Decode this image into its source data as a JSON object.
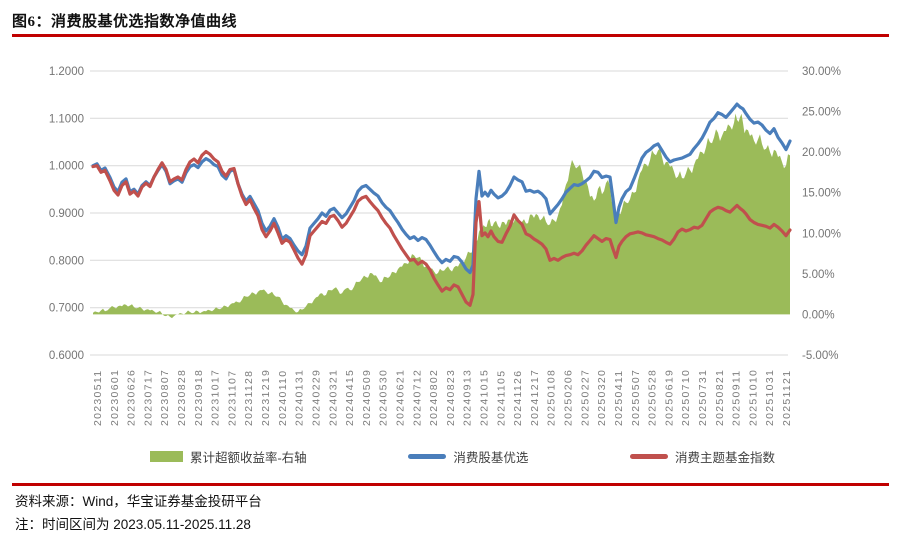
{
  "figure": {
    "title": "图6：消费股基优选指数净值曲线",
    "source_line": "资料来源：Wind，华宝证券基金投研平台",
    "note_line": "注：时间区间为 2023.05.11-2025.11.28",
    "accent_rule_color": "#c00000"
  },
  "chart_data": {
    "type": "line",
    "title": "消费股基优选指数净值曲线",
    "grid": "horizontal",
    "legend_position": "bottom",
    "left_axis": {
      "min": 0.6,
      "max": 1.2,
      "ticks": [
        "1.2000",
        "1.1000",
        "1.0000",
        "0.9000",
        "0.8000",
        "0.7000",
        "0.6000"
      ]
    },
    "right_axis": {
      "min": -5,
      "max": 30,
      "ticks": [
        "30.00%",
        "25.00%",
        "20.00%",
        "15.00%",
        "10.00%",
        "5.00%",
        "0.00%",
        "-5.00%"
      ]
    },
    "x_tick_labels": [
      "20230511",
      "20230601",
      "20230626",
      "20230717",
      "20230807",
      "20230828",
      "20230918",
      "20231017",
      "20231107",
      "20231128",
      "20231219",
      "20240110",
      "20240131",
      "20240229",
      "20240321",
      "20240415",
      "20240509",
      "20240530",
      "20240621",
      "20240712",
      "20240802",
      "20240823",
      "20240913",
      "20241015",
      "20241105",
      "20241126",
      "20241217",
      "20250108",
      "20250206",
      "20250227",
      "20250320",
      "20250411",
      "20250507",
      "20250528",
      "20250619",
      "20250710",
      "20250731",
      "20250821",
      "20250911",
      "20251010",
      "20251031",
      "20251121"
    ],
    "series_meta": [
      {
        "name": "累计超额收益率-右轴",
        "type": "area",
        "axis": "right",
        "color": "#9bbb59"
      },
      {
        "name": "消费股基优选",
        "type": "line",
        "axis": "left",
        "color": "#4a7ebb"
      },
      {
        "name": "消费主题基金指数",
        "type": "line",
        "axis": "left",
        "color": "#c0504d"
      }
    ],
    "points_columns": [
      "x_px",
      "消费股基优选",
      "消费主题基金指数",
      "累计超额收益率_pct"
    ],
    "points": [
      [
        93,
        1.0,
        0.998,
        0.2
      ],
      [
        97,
        1.004,
        1.0,
        0.3
      ],
      [
        101,
        0.99,
        0.986,
        0.5
      ],
      [
        105,
        0.995,
        0.99,
        0.4
      ],
      [
        110,
        0.975,
        0.968,
        0.8
      ],
      [
        114,
        0.955,
        0.948,
        0.9
      ],
      [
        118,
        0.945,
        0.938,
        1.0
      ],
      [
        122,
        0.965,
        0.958,
        1.0
      ],
      [
        126,
        0.972,
        0.966,
        1.2
      ],
      [
        130,
        0.945,
        0.94,
        1.1
      ],
      [
        134,
        0.95,
        0.946,
        0.9
      ],
      [
        138,
        0.94,
        0.936,
        0.8
      ],
      [
        142,
        0.958,
        0.955,
        0.7
      ],
      [
        146,
        0.966,
        0.963,
        0.6
      ],
      [
        150,
        0.958,
        0.956,
        0.5
      ],
      [
        154,
        0.976,
        0.976,
        0.4
      ],
      [
        158,
        0.99,
        0.992,
        0.3
      ],
      [
        162,
        1.002,
        1.006,
        0.1
      ],
      [
        166,
        0.988,
        0.992,
        -0.2
      ],
      [
        170,
        0.962,
        0.966,
        -0.3
      ],
      [
        174,
        0.968,
        0.972,
        -0.2
      ],
      [
        178,
        0.972,
        0.976,
        0.0
      ],
      [
        182,
        0.965,
        0.97,
        0.1
      ],
      [
        186,
        0.985,
        0.992,
        0.2
      ],
      [
        190,
        0.998,
        1.008,
        0.3
      ],
      [
        194,
        1.002,
        1.014,
        0.2
      ],
      [
        198,
        0.996,
        1.006,
        0.4
      ],
      [
        202,
        1.008,
        1.022,
        0.3
      ],
      [
        206,
        1.015,
        1.03,
        0.4
      ],
      [
        210,
        1.01,
        1.024,
        0.5
      ],
      [
        214,
        1.002,
        1.014,
        0.6
      ],
      [
        218,
        0.998,
        1.008,
        0.7
      ],
      [
        222,
        0.98,
        0.988,
        0.8
      ],
      [
        226,
        0.972,
        0.978,
        1.0
      ],
      [
        230,
        0.988,
        0.992,
        1.2
      ],
      [
        234,
        0.992,
        0.994,
        1.4
      ],
      [
        238,
        0.962,
        0.962,
        1.5
      ],
      [
        242,
        0.94,
        0.936,
        1.8
      ],
      [
        246,
        0.925,
        0.918,
        2.2
      ],
      [
        250,
        0.935,
        0.928,
        2.4
      ],
      [
        254,
        0.92,
        0.91,
        2.6
      ],
      [
        258,
        0.905,
        0.894,
        2.8
      ],
      [
        262,
        0.878,
        0.865,
        3.0
      ],
      [
        266,
        0.862,
        0.85,
        2.8
      ],
      [
        270,
        0.872,
        0.862,
        2.6
      ],
      [
        274,
        0.888,
        0.878,
        2.4
      ],
      [
        278,
        0.87,
        0.858,
        2.2
      ],
      [
        282,
        0.845,
        0.836,
        1.6
      ],
      [
        286,
        0.852,
        0.844,
        1.2
      ],
      [
        290,
        0.846,
        0.838,
        0.8
      ],
      [
        294,
        0.832,
        0.822,
        0.5
      ],
      [
        298,
        0.82,
        0.805,
        0.3
      ],
      [
        302,
        0.812,
        0.792,
        0.6
      ],
      [
        306,
        0.83,
        0.812,
        1.0
      ],
      [
        310,
        0.868,
        0.852,
        1.4
      ],
      [
        314,
        0.878,
        0.862,
        1.8
      ],
      [
        318,
        0.888,
        0.872,
        2.2
      ],
      [
        322,
        0.9,
        0.882,
        2.6
      ],
      [
        326,
        0.893,
        0.878,
        2.4
      ],
      [
        330,
        0.906,
        0.892,
        3.0
      ],
      [
        334,
        0.91,
        0.895,
        3.2
      ],
      [
        338,
        0.9,
        0.884,
        3.0
      ],
      [
        342,
        0.89,
        0.87,
        2.6
      ],
      [
        346,
        0.898,
        0.878,
        3.2
      ],
      [
        350,
        0.912,
        0.892,
        3.0
      ],
      [
        354,
        0.926,
        0.906,
        3.4
      ],
      [
        358,
        0.946,
        0.925,
        4.0
      ],
      [
        362,
        0.955,
        0.932,
        4.4
      ],
      [
        366,
        0.958,
        0.935,
        4.6
      ],
      [
        370,
        0.95,
        0.924,
        5.1
      ],
      [
        374,
        0.942,
        0.914,
        4.8
      ],
      [
        378,
        0.936,
        0.905,
        4.4
      ],
      [
        382,
        0.922,
        0.89,
        4.0
      ],
      [
        386,
        0.912,
        0.878,
        4.6
      ],
      [
        390,
        0.905,
        0.868,
        4.7
      ],
      [
        394,
        0.892,
        0.852,
        5.2
      ],
      [
        398,
        0.88,
        0.838,
        5.6
      ],
      [
        402,
        0.866,
        0.824,
        5.9
      ],
      [
        406,
        0.855,
        0.812,
        6.3
      ],
      [
        410,
        0.846,
        0.8,
        6.7
      ],
      [
        414,
        0.85,
        0.802,
        7.3
      ],
      [
        418,
        0.842,
        0.792,
        7.0
      ],
      [
        422,
        0.848,
        0.798,
        6.5
      ],
      [
        426,
        0.844,
        0.792,
        5.9
      ],
      [
        430,
        0.832,
        0.78,
        5.6
      ],
      [
        434,
        0.818,
        0.762,
        5.3
      ],
      [
        438,
        0.805,
        0.748,
        5.1
      ],
      [
        442,
        0.795,
        0.735,
        5.4
      ],
      [
        446,
        0.802,
        0.742,
        5.7
      ],
      [
        450,
        0.798,
        0.738,
        5.5
      ],
      [
        454,
        0.808,
        0.748,
        5.8
      ],
      [
        458,
        0.806,
        0.744,
        5.9
      ],
      [
        462,
        0.796,
        0.728,
        6.4
      ],
      [
        466,
        0.782,
        0.712,
        7.0
      ],
      [
        470,
        0.774,
        0.705,
        7.6
      ],
      [
        473,
        0.79,
        0.728,
        8.0
      ],
      [
        476,
        0.93,
        0.88,
        9.0
      ],
      [
        479,
        0.988,
        0.924,
        10.2
      ],
      [
        482,
        0.936,
        0.852,
        10.6
      ],
      [
        485,
        0.944,
        0.858,
        10.8
      ],
      [
        488,
        0.936,
        0.85,
        11.5
      ],
      [
        491,
        0.948,
        0.862,
        10.9
      ],
      [
        494,
        0.94,
        0.85,
        11.3
      ],
      [
        498,
        0.932,
        0.84,
        10.9
      ],
      [
        502,
        0.936,
        0.838,
        11.4
      ],
      [
        506,
        0.944,
        0.856,
        11.0
      ],
      [
        510,
        0.958,
        0.872,
        11.7
      ],
      [
        514,
        0.976,
        0.896,
        11.4
      ],
      [
        518,
        0.97,
        0.884,
        11.8
      ],
      [
        522,
        0.966,
        0.876,
        11.4
      ],
      [
        526,
        0.946,
        0.856,
        11.2
      ],
      [
        530,
        0.948,
        0.852,
        12.3
      ],
      [
        534,
        0.944,
        0.845,
        11.9
      ],
      [
        538,
        0.946,
        0.84,
        12.2
      ],
      [
        542,
        0.94,
        0.834,
        11.8
      ],
      [
        546,
        0.93,
        0.824,
        11.4
      ],
      [
        550,
        0.898,
        0.8,
        11.1
      ],
      [
        554,
        0.908,
        0.804,
        11.6
      ],
      [
        558,
        0.918,
        0.8,
        12.2
      ],
      [
        562,
        0.93,
        0.806,
        13.5
      ],
      [
        566,
        0.944,
        0.81,
        16.0
      ],
      [
        570,
        0.952,
        0.812,
        18.0
      ],
      [
        574,
        0.96,
        0.815,
        18.5
      ],
      [
        578,
        0.958,
        0.812,
        18.2
      ],
      [
        582,
        0.962,
        0.82,
        17.5
      ],
      [
        586,
        0.968,
        0.832,
        16.5
      ],
      [
        590,
        0.975,
        0.842,
        14.5
      ],
      [
        594,
        0.988,
        0.852,
        14.0
      ],
      [
        598,
        0.986,
        0.846,
        15.5
      ],
      [
        602,
        0.975,
        0.84,
        14.8
      ],
      [
        606,
        0.978,
        0.846,
        16.2
      ],
      [
        610,
        0.976,
        0.844,
        15.8
      ],
      [
        613,
        0.93,
        0.824,
        13.5
      ],
      [
        616,
        0.88,
        0.806,
        11.5
      ],
      [
        619,
        0.912,
        0.83,
        12.5
      ],
      [
        622,
        0.93,
        0.84,
        13.0
      ],
      [
        626,
        0.945,
        0.85,
        13.8
      ],
      [
        630,
        0.952,
        0.856,
        14.2
      ],
      [
        634,
        0.972,
        0.858,
        15.0
      ],
      [
        638,
        0.994,
        0.86,
        16.5
      ],
      [
        642,
        1.016,
        0.858,
        17.8
      ],
      [
        646,
        1.028,
        0.854,
        18.5
      ],
      [
        650,
        1.034,
        0.852,
        19.0
      ],
      [
        654,
        1.042,
        0.85,
        19.8
      ],
      [
        658,
        1.046,
        0.846,
        20.2
      ],
      [
        662,
        1.032,
        0.843,
        19.4
      ],
      [
        666,
        1.018,
        0.838,
        18.8
      ],
      [
        670,
        1.008,
        0.834,
        18.2
      ],
      [
        674,
        1.012,
        0.845,
        17.6
      ],
      [
        678,
        1.014,
        0.86,
        17.0
      ],
      [
        682,
        1.016,
        0.866,
        16.8
      ],
      [
        686,
        1.02,
        0.862,
        17.4
      ],
      [
        690,
        1.024,
        0.865,
        17.8
      ],
      [
        694,
        1.036,
        0.87,
        18.4
      ],
      [
        698,
        1.046,
        0.868,
        19.2
      ],
      [
        702,
        1.058,
        0.874,
        20.0
      ],
      [
        706,
        1.074,
        0.888,
        20.6
      ],
      [
        710,
        1.092,
        0.902,
        21.2
      ],
      [
        714,
        1.1,
        0.908,
        21.8
      ],
      [
        718,
        1.112,
        0.912,
        22.4
      ],
      [
        722,
        1.108,
        0.91,
        22.0
      ],
      [
        726,
        1.102,
        0.905,
        22.6
      ],
      [
        730,
        1.112,
        0.902,
        23.2
      ],
      [
        734,
        1.122,
        0.91,
        23.6
      ],
      [
        737,
        1.13,
        0.916,
        24.0
      ],
      [
        740,
        1.124,
        0.91,
        24.3
      ],
      [
        743,
        1.12,
        0.905,
        23.6
      ],
      [
        746,
        1.11,
        0.898,
        22.8
      ],
      [
        750,
        1.098,
        0.886,
        22.0
      ],
      [
        754,
        1.09,
        0.88,
        21.4
      ],
      [
        758,
        1.092,
        0.876,
        21.6
      ],
      [
        762,
        1.086,
        0.874,
        21.0
      ],
      [
        766,
        1.075,
        0.872,
        20.4
      ],
      [
        770,
        1.068,
        0.868,
        20.0
      ],
      [
        774,
        1.078,
        0.876,
        20.3
      ],
      [
        778,
        1.06,
        0.87,
        19.4
      ],
      [
        782,
        1.048,
        0.862,
        18.8
      ],
      [
        786,
        1.034,
        0.852,
        18.3
      ],
      [
        790,
        1.052,
        0.864,
        19.6
      ]
    ]
  }
}
